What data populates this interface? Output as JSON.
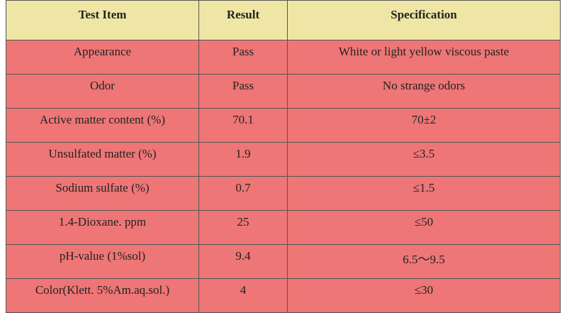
{
  "table": {
    "header": [
      "Test Item",
      "Result",
      "Specification"
    ],
    "rows": [
      [
        "Appearance",
        "Pass",
        "White or light yellow viscous paste"
      ],
      [
        "Odor",
        "Pass",
        "No strange odors"
      ],
      [
        "Active matter content (%)",
        "70.1",
        "70±2"
      ],
      [
        "Unsulfated matter (%)",
        "1.9",
        "≤3.5"
      ],
      [
        "Sodium sulfate (%)",
        "0.7",
        "≤1.5"
      ],
      [
        "1.4-Dioxane. ppm",
        "25",
        "≤50"
      ],
      [
        "pH-value (1%sol)",
        "9.4",
        "6.5～9.5"
      ],
      [
        "Color(Klett. 5%Am.aq.sol.)",
        "4",
        "≤30"
      ]
    ]
  }
}
